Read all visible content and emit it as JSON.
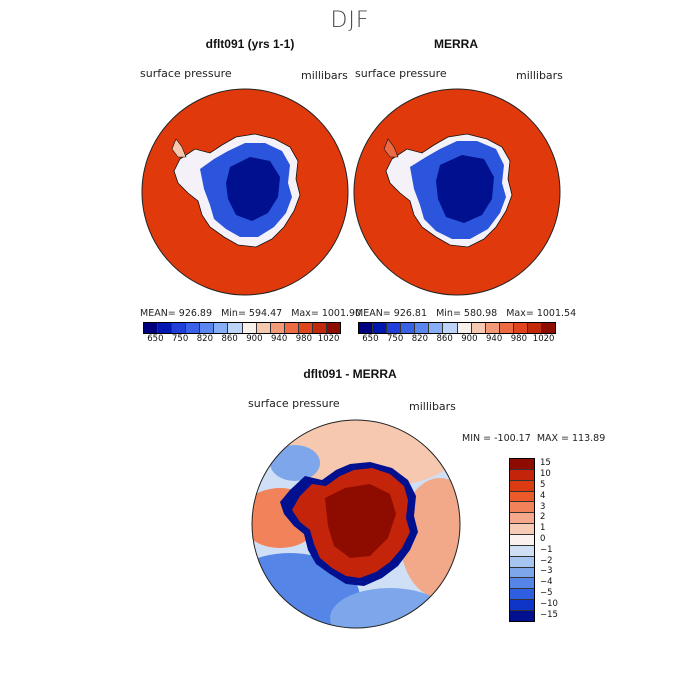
{
  "title": "DJF",
  "panels": {
    "model": {
      "title": "dflt091 (yrs 1-1)",
      "variable": "surface pressure",
      "units": "millibars",
      "stats": "MEAN= 926.89   Min= 594.47   Max= 1001.90"
    },
    "obs": {
      "title": "MERRA",
      "variable": "surface pressure",
      "units": "millibars",
      "stats": "MEAN= 926.81   Min= 580.98   Max= 1001.54"
    },
    "diff": {
      "title": "dflt091 - MERRA",
      "variable": "surface pressure",
      "units": "millibars",
      "minmax": "MIN = -100.17  MAX = 113.89"
    }
  },
  "colorbar_abs": {
    "colors": [
      "#00007f",
      "#0018b0",
      "#1f3fd8",
      "#3a62e6",
      "#5a86ee",
      "#87aef4",
      "#bcd4fa",
      "#f8f0ea",
      "#f6c8b0",
      "#f29a78",
      "#ec6a44",
      "#e0461e",
      "#c02a0a",
      "#8e0b00"
    ],
    "labels": [
      "650",
      "750",
      "820",
      "860",
      "900",
      "940",
      "980",
      "1020"
    ]
  },
  "colorbar_diff": {
    "colors": [
      "#8e0b00",
      "#c4250a",
      "#dc3a10",
      "#ec5a2a",
      "#f2825a",
      "#f6a98a",
      "#f8cbb6",
      "#f9f2ee",
      "#cfe0f6",
      "#a6c5f0",
      "#7da7ea",
      "#5585e6",
      "#2e5fe0",
      "#0f34c8",
      "#00108e"
    ],
    "labels": [
      "15",
      "10",
      "5",
      "4",
      "3",
      "2",
      "1",
      "0",
      "−1",
      "−2",
      "−3",
      "−4",
      "−5",
      "−10",
      "−15"
    ]
  }
}
